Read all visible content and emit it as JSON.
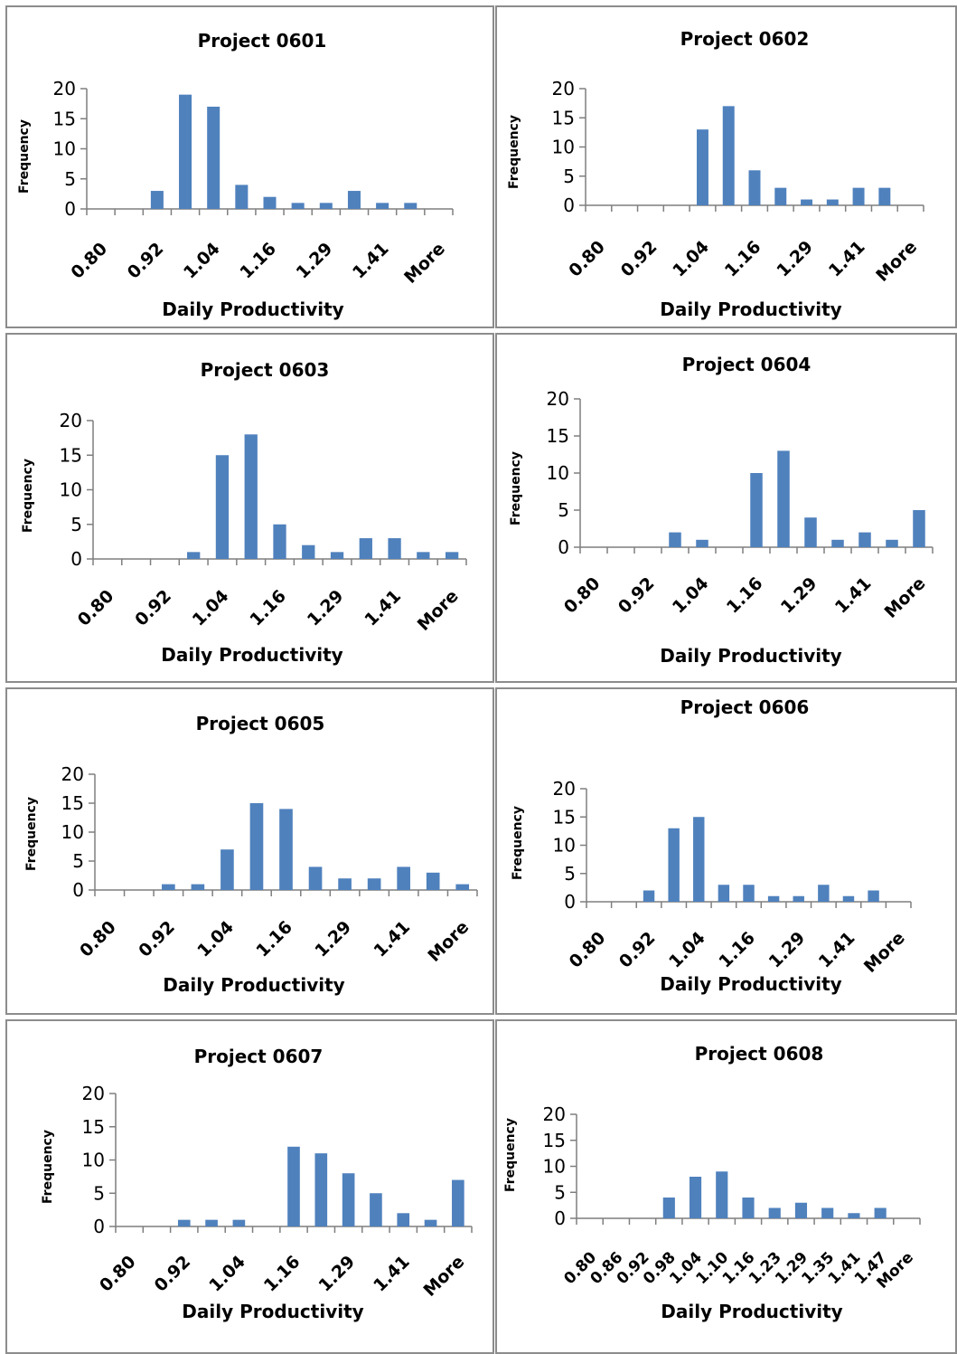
{
  "chart_data": [
    {
      "type": "bar",
      "title": "Project 0601",
      "xlabel": "Daily Productivity",
      "ylabel": "Frequency",
      "ylim": [
        0,
        20
      ],
      "yticks": [
        0,
        5,
        10,
        15,
        20
      ],
      "tick_labels": [
        "0.80",
        "0.92",
        "1.04",
        "1.16",
        "1.29",
        "1.41",
        "More"
      ],
      "values": [
        0,
        0,
        3,
        19,
        17,
        4,
        2,
        1,
        1,
        3,
        1,
        1,
        0
      ]
    },
    {
      "type": "bar",
      "title": "Project 0602",
      "xlabel": "Daily Productivity",
      "ylabel": "Frequency",
      "ylim": [
        0,
        20
      ],
      "yticks": [
        0,
        5,
        10,
        15,
        20
      ],
      "tick_labels": [
        "0.80",
        "0.92",
        "1.04",
        "1.16",
        "1.29",
        "1.41",
        "More"
      ],
      "values": [
        0,
        0,
        0,
        0,
        13,
        17,
        6,
        3,
        1,
        1,
        3,
        3,
        0
      ]
    },
    {
      "type": "bar",
      "title": "Project 0603",
      "xlabel": "Daily Productivity",
      "ylabel": "Frequency",
      "ylim": [
        0,
        20
      ],
      "yticks": [
        0,
        5,
        10,
        15,
        20
      ],
      "tick_labels": [
        "0.80",
        "0.92",
        "1.04",
        "1.16",
        "1.29",
        "1.41",
        "More"
      ],
      "values": [
        0,
        0,
        0,
        1,
        15,
        18,
        5,
        2,
        1,
        3,
        3,
        1,
        1
      ]
    },
    {
      "type": "bar",
      "title": "Project 0604",
      "xlabel": "Daily Productivity",
      "ylabel": "Frequency",
      "ylim": [
        0,
        20
      ],
      "yticks": [
        0,
        5,
        10,
        15,
        20
      ],
      "tick_labels": [
        "0.80",
        "0.92",
        "1.04",
        "1.16",
        "1.29",
        "1.41",
        "More"
      ],
      "values": [
        0,
        0,
        0,
        2,
        1,
        0,
        10,
        13,
        4,
        1,
        2,
        1,
        5
      ]
    },
    {
      "type": "bar",
      "title": "Project 0605",
      "xlabel": "Daily Productivity",
      "ylabel": "Frequency",
      "ylim": [
        0,
        20
      ],
      "yticks": [
        0,
        5,
        10,
        15,
        20
      ],
      "tick_labels": [
        "0.80",
        "0.92",
        "1.04",
        "1.16",
        "1.29",
        "1.41",
        "More"
      ],
      "values": [
        0,
        0,
        1,
        1,
        7,
        15,
        14,
        4,
        2,
        2,
        4,
        3,
        1
      ]
    },
    {
      "type": "bar",
      "title": "Project 0606",
      "xlabel": "Daily Productivity",
      "ylabel": "Frequency",
      "ylim": [
        0,
        20
      ],
      "yticks": [
        0,
        5,
        10,
        15,
        20
      ],
      "tick_labels": [
        "0.80",
        "0.92",
        "1.04",
        "1.16",
        "1.29",
        "1.41",
        "More"
      ],
      "values": [
        0,
        0,
        2,
        13,
        15,
        3,
        3,
        1,
        1,
        3,
        1,
        2,
        0
      ]
    },
    {
      "type": "bar",
      "title": "Project 0607",
      "xlabel": "Daily Productivity",
      "ylabel": "Frequency",
      "ylim": [
        0,
        20
      ],
      "yticks": [
        0,
        5,
        10,
        15,
        20
      ],
      "tick_labels": [
        "0.80",
        "0.92",
        "1.04",
        "1.16",
        "1.29",
        "1.41",
        "More"
      ],
      "values": [
        0,
        0,
        1,
        1,
        1,
        0,
        12,
        11,
        8,
        5,
        2,
        1,
        7
      ]
    },
    {
      "type": "bar",
      "title": "Project 0608",
      "xlabel": "Daily Productivity",
      "ylabel": "Frequency",
      "ylim": [
        0,
        20
      ],
      "yticks": [
        0,
        5,
        10,
        15,
        20
      ],
      "tick_labels": [
        "0.80",
        "0.86",
        "0.92",
        "0.98",
        "1.04",
        "1.10",
        "1.16",
        "1.23",
        "1.29",
        "1.35",
        "1.41",
        "1.47",
        "More"
      ],
      "values": [
        0,
        0,
        0,
        4,
        8,
        9,
        4,
        2,
        3,
        2,
        1,
        2,
        0
      ]
    }
  ]
}
